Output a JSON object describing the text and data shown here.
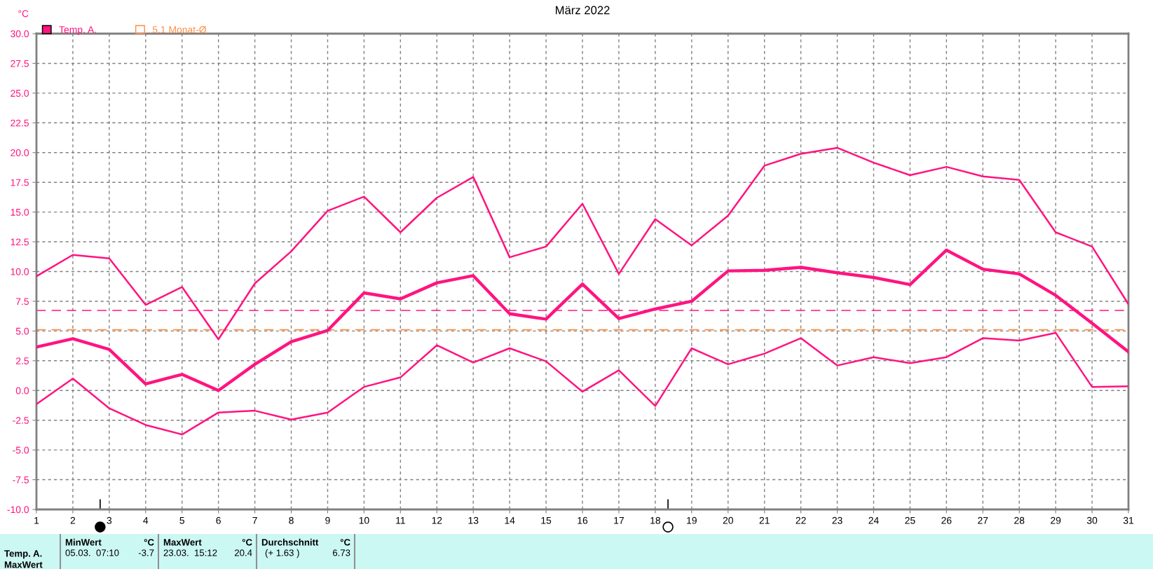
{
  "chart_data": {
    "type": "line",
    "title": "März 2022",
    "ylabel": "°C",
    "x": [
      1,
      2,
      3,
      4,
      5,
      6,
      7,
      8,
      9,
      10,
      11,
      12,
      13,
      14,
      15,
      16,
      17,
      18,
      19,
      20,
      21,
      22,
      23,
      24,
      25,
      26,
      27,
      28,
      29,
      30,
      31
    ],
    "series": [
      {
        "color": "#ff1480",
        "values": [
          9.6,
          11.4,
          11.1,
          7.2,
          8.7,
          4.3,
          9.0,
          11.7,
          15.1,
          16.3,
          13.3,
          16.2,
          17.95,
          11.2,
          12.1,
          15.7,
          9.8,
          14.4,
          12.2,
          14.7,
          18.9,
          19.9,
          20.4,
          19.15,
          18.1,
          18.8,
          18.0,
          17.7,
          13.3,
          12.1,
          7.25
        ]
      },
      {
        "name": "Temp. A.",
        "color": "#ff1480",
        "values": [
          3.65,
          4.35,
          3.45,
          0.55,
          1.35,
          0.0,
          2.2,
          4.1,
          5.05,
          8.2,
          7.7,
          9.05,
          9.65,
          6.45,
          6.0,
          8.95,
          6.05,
          6.85,
          7.5,
          10.05,
          10.1,
          10.35,
          9.9,
          9.5,
          8.9,
          11.8,
          10.2,
          9.8,
          8.0,
          5.65,
          3.25
        ]
      },
      {
        "color": "#ff1480",
        "values": [
          -1.15,
          1.0,
          -1.5,
          -2.9,
          -3.7,
          -1.85,
          -1.7,
          -2.45,
          -1.85,
          0.3,
          1.1,
          3.8,
          2.35,
          3.55,
          2.45,
          -0.1,
          1.7,
          -1.3,
          3.55,
          2.2,
          3.1,
          4.4,
          2.1,
          2.8,
          2.3,
          2.8,
          4.4,
          4.2,
          4.85,
          0.3,
          0.35
        ]
      }
    ],
    "ref_lines": [
      {
        "axis": "y",
        "value": 6.73,
        "color": "#ff1480",
        "line_style": "dashed"
      },
      {
        "axis": "y",
        "value": 5.1,
        "label": "5.1 Monat-Ø",
        "color": "#ff8c40",
        "line_style": "dashed"
      }
    ],
    "xlim": [
      1,
      31
    ],
    "xticks": [
      1,
      2,
      3,
      4,
      5,
      6,
      7,
      8,
      9,
      10,
      11,
      12,
      13,
      14,
      15,
      16,
      17,
      18,
      19,
      20,
      21,
      22,
      23,
      24,
      25,
      26,
      27,
      28,
      29,
      30,
      31
    ],
    "ylim": [
      -10,
      30
    ],
    "yticks": [
      {
        "value": -10,
        "label": "-10.0"
      },
      {
        "value": -7.5,
        "label": "-7.5"
      },
      {
        "value": -5,
        "label": "-5.0"
      },
      {
        "value": -2.5,
        "label": "-2.5"
      },
      {
        "value": 0,
        "label": "0.0"
      },
      {
        "value": 2.5,
        "label": "2.5"
      },
      {
        "value": 5,
        "label": "5.0"
      },
      {
        "value": 7.5,
        "label": "7.5"
      },
      {
        "value": 10,
        "label": "10.0"
      },
      {
        "value": 12.5,
        "label": "12.5"
      },
      {
        "value": 15,
        "label": "15.0"
      },
      {
        "value": 17.5,
        "label": "17.5"
      },
      {
        "value": 20,
        "label": "20.0"
      },
      {
        "value": 22.5,
        "label": "22.5"
      },
      {
        "value": 25,
        "label": "25.0"
      },
      {
        "value": 27.5,
        "label": "27.5"
      },
      {
        "value": 30,
        "label": "30.0"
      }
    ],
    "grid": true,
    "legend": "top left",
    "marker": "none",
    "line_style": "solid",
    "annotations": [
      "Temp. A.",
      "MaxWert",
      "MinWert",
      "°C",
      "05.03.  07:10",
      "-3.7",
      "MaxWert",
      "°C",
      "23.03.  15:12",
      "20.4",
      "Durchschnitt",
      "°C",
      "(+ 1.63 )",
      "6.73"
    ]
  }
}
